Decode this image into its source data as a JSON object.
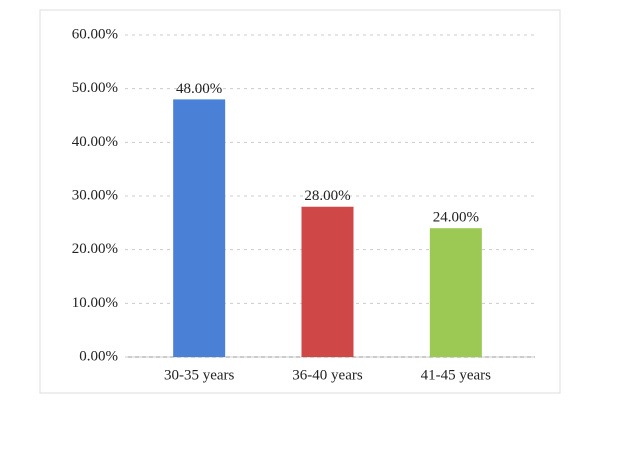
{
  "chart_data": {
    "type": "bar",
    "categories": [
      "30-35 years",
      "36-40 years",
      "41-45 years"
    ],
    "values": [
      48,
      28,
      24
    ],
    "value_labels": [
      "48.00%",
      "28.00%",
      "24.00%"
    ],
    "colors": [
      "#4a80d6",
      "#cf4747",
      "#9cc953"
    ],
    "ylim": [
      0,
      60
    ],
    "yticks": [
      {
        "value": 0,
        "label": "0.00%"
      },
      {
        "value": 10,
        "label": "10.00%"
      },
      {
        "value": 20,
        "label": "20.00%"
      },
      {
        "value": 30,
        "label": "30.00%"
      },
      {
        "value": 40,
        "label": "40.00%"
      },
      {
        "value": 50,
        "label": "50.00%"
      },
      {
        "value": 60,
        "label": "60.00%"
      }
    ],
    "grid": true
  }
}
